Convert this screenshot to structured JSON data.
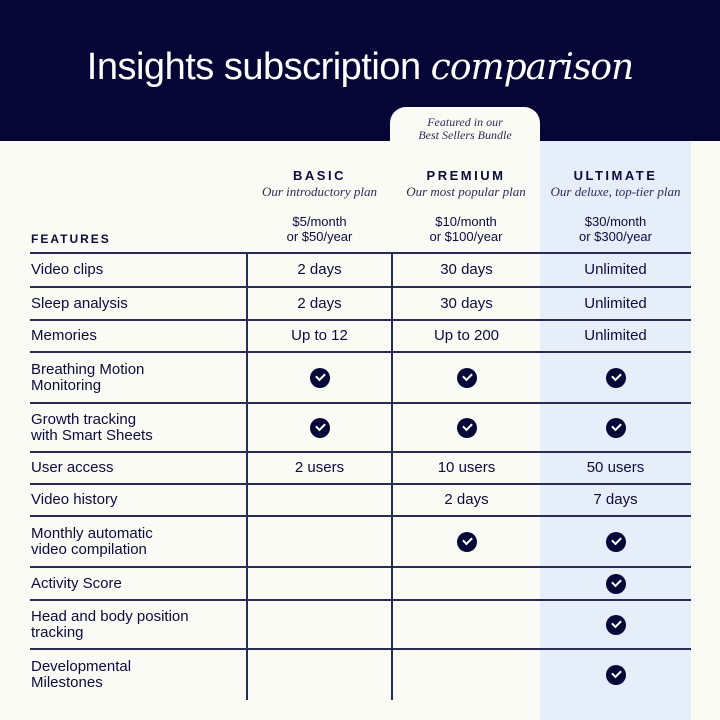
{
  "header": {
    "title_main": "Insights subscription",
    "title_italic": "comparison"
  },
  "featured_tab": {
    "line1": "Featured in our",
    "line2": "Best Sellers Bundle"
  },
  "colors": {
    "navy": "#050636",
    "background": "#fbfbf6",
    "ultimate_highlight": "#e6eef9"
  },
  "features_label": "FEATURES",
  "plans": [
    {
      "name": "BASIC",
      "subtitle": "Our introductory plan",
      "price_month": "$5/month",
      "price_year": "or $50/year"
    },
    {
      "name": "PREMIUM",
      "subtitle": "Our most popular plan",
      "price_month": "$10/month",
      "price_year": "or $100/year"
    },
    {
      "name": "ULTIMATE",
      "subtitle": "Our deluxe, top-tier plan",
      "price_month": "$30/month",
      "price_year": "or $300/year"
    }
  ],
  "rows": [
    {
      "feature": [
        "Video clips"
      ],
      "basic": "2 days",
      "premium": "30 days",
      "ultimate": "Unlimited"
    },
    {
      "feature": [
        "Sleep analysis"
      ],
      "basic": "2 days",
      "premium": "30 days",
      "ultimate": "Unlimited"
    },
    {
      "feature": [
        "Memories"
      ],
      "basic": "Up to 12",
      "premium": "Up to 200",
      "ultimate": "Unlimited"
    },
    {
      "feature": [
        "Breathing Motion",
        "Monitoring"
      ],
      "basic": "check",
      "premium": "check",
      "ultimate": "check"
    },
    {
      "feature": [
        "Growth tracking",
        "with Smart Sheets"
      ],
      "basic": "check",
      "premium": "check",
      "ultimate": "check"
    },
    {
      "feature": [
        "User access"
      ],
      "basic": "2 users",
      "premium": "10 users",
      "ultimate": "50 users"
    },
    {
      "feature": [
        "Video history"
      ],
      "basic": "",
      "premium": "2 days",
      "ultimate": "7 days"
    },
    {
      "feature": [
        "Monthly automatic",
        "video compilation"
      ],
      "basic": "",
      "premium": "check",
      "ultimate": "check"
    },
    {
      "feature": [
        "Activity Score"
      ],
      "basic": "",
      "premium": "",
      "ultimate": "check"
    },
    {
      "feature": [
        "Head and body position",
        "tracking"
      ],
      "basic": "",
      "premium": "",
      "ultimate": "check"
    },
    {
      "feature": [
        "Developmental",
        "Milestones"
      ],
      "basic": "",
      "premium": "",
      "ultimate": "check"
    }
  ]
}
